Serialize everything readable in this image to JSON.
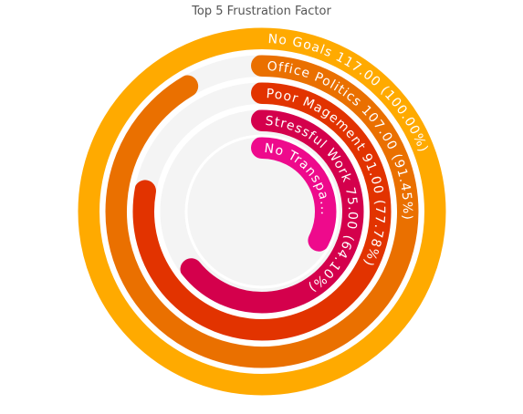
{
  "chart_data": {
    "type": "radial-bar",
    "title": "Top 5 Frustration Factor",
    "max": 117,
    "track_color": "#f4f4f4",
    "series": [
      {
        "name": "No Goals",
        "value": 117,
        "label": "No Goals 117.00 (100.00%)",
        "color": "#ffaa00"
      },
      {
        "name": "Office Politics",
        "value": 107,
        "label": "Office Politics 107.00 (91.45%)",
        "color": "#ea7000"
      },
      {
        "name": "Poor Magement",
        "value": 91,
        "label": "Poor Magement 91.00 (77.78%)",
        "color": "#e23300"
      },
      {
        "name": "Stressful Work",
        "value": 75,
        "label": "Stressful Work 75.00 (64.10%)",
        "color": "#d4004c"
      },
      {
        "name": "No Transpa...",
        "value": 38,
        "label": "No Transpa...",
        "color": "#ee0a8c"
      }
    ]
  }
}
